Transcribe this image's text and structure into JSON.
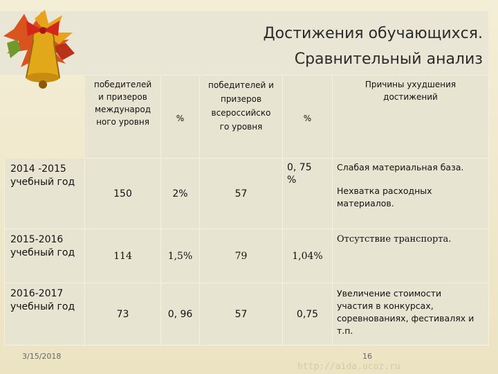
{
  "title": {
    "line1": "Достижения обучающихся.",
    "line2": "Сравнительный анализ"
  },
  "headers": {
    "international": "победителей\nи призеров\nмеждународ\nного уровня",
    "pct1": "%",
    "allrussian": "победителей и\nпризеров\nвсероссийско\nго уровня",
    "pct2": "%",
    "reasons": "Причины ухудшения\nдостижений"
  },
  "rows": [
    {
      "year": "2014 -2015\nучебный год",
      "international": "150",
      "pct1": "2%",
      "allrussian": "57",
      "pct2": "0, 75\n%",
      "reasons": [
        "Слабая материальная база.",
        "Нехватка расходных\nматериалов."
      ]
    },
    {
      "year": "2015-2016\nучебный год",
      "international": "114",
      "pct1": "1,5%",
      "allrussian": "79",
      "pct2": "1,04%",
      "reasons": [
        "Отсутствие транспорта."
      ]
    },
    {
      "year": "2016-2017\nучебный год",
      "international": "73",
      "pct1": "0, 96",
      "allrussian": "57",
      "pct2": "0,75",
      "reasons": [
        "Увеличение стоимости\nучастия в конкурсах,\nсоревнованиях, фестивалях и\nт.п."
      ]
    }
  ],
  "footer": {
    "date": "3/15/2018",
    "page": "16",
    "url": "http://aida.ucoz.ru"
  },
  "colors": {
    "background": "#efe7c9",
    "cell": "#e8e4d2",
    "title_text": "#2a2a2a"
  },
  "icons": [
    "bell-with-autumn-leaves-icon"
  ]
}
